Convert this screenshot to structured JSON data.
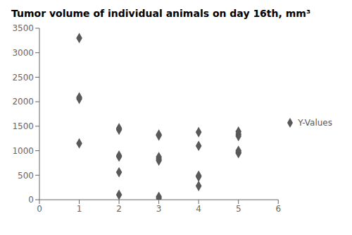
{
  "chart_data": {
    "type": "scatter",
    "title": "Tumor volume of individual animals on day 16th, mm³",
    "x": [
      1,
      1,
      1,
      1,
      2,
      2,
      2,
      2,
      2,
      2,
      3,
      3,
      3,
      3,
      3,
      3,
      3,
      4,
      4,
      4,
      4,
      4,
      5,
      5,
      5,
      5,
      5,
      5
    ],
    "series": [
      {
        "name": "Y-Values",
        "color": "#595959",
        "marker": "diamond",
        "values": [
          1150,
          2060,
          2090,
          3300,
          100,
          560,
          880,
          900,
          1430,
          1460,
          30,
          60,
          800,
          830,
          870,
          1310,
          1330,
          280,
          470,
          490,
          1100,
          1380,
          950,
          970,
          1000,
          1300,
          1340,
          1390
        ]
      }
    ],
    "xlim": [
      0,
      6
    ],
    "xticks": [
      0,
      1,
      2,
      3,
      4,
      5,
      6
    ],
    "ylim": [
      0,
      3500
    ],
    "yticks": [
      0,
      500,
      1000,
      1500,
      2000,
      2500,
      3000,
      3500
    ],
    "grid": false,
    "legend": "right"
  }
}
